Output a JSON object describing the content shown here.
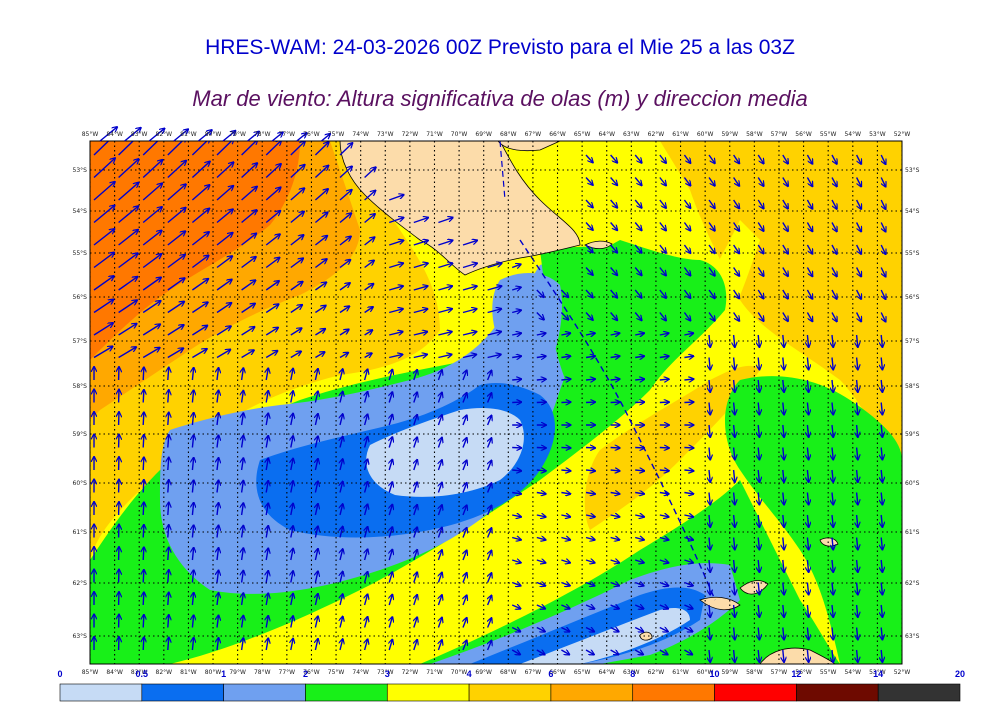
{
  "header": {
    "title": "HRES-WAM: 24-03-2026 00Z Previsto para el Mie 25 a las 03Z",
    "subtitle": "Mar de viento: Altura significativa de olas (m) y direccion media"
  },
  "axes": {
    "lon_labels": [
      "85°W",
      "84°W",
      "83°W",
      "82°W",
      "81°W",
      "80°W",
      "79°W",
      "78°W",
      "77°W",
      "76°W",
      "75°W",
      "74°W",
      "73°W",
      "72°W",
      "71°W",
      "70°W",
      "69°W",
      "68°W",
      "67°W",
      "66°W",
      "65°W",
      "64°W",
      "63°W",
      "62°W",
      "61°W",
      "60°W",
      "59°W",
      "58°W",
      "57°W",
      "56°W",
      "55°W",
      "54°W",
      "53°W",
      "52°W"
    ],
    "lat_labels": [
      "53°S",
      "54°S",
      "55°S",
      "56°S",
      "57°S",
      "58°S",
      "59°S",
      "60°S",
      "61°S",
      "62°S",
      "63°S"
    ]
  },
  "colorbar": {
    "ticks": [
      "0",
      "0.5",
      "1",
      "2",
      "3",
      "4",
      "6",
      "8",
      "10",
      "12",
      "14",
      "20"
    ],
    "colors": [
      "#c6dbf5",
      "#0a6ef0",
      "#6fa0f0",
      "#18f018",
      "#ffff00",
      "#ffd200",
      "#ffa800",
      "#ff7800",
      "#ff0000",
      "#6e0a00",
      "#333333"
    ]
  },
  "colors": {
    "land": "#fcdcaa",
    "arrow": "#0000cc",
    "grid": "#000000"
  }
}
